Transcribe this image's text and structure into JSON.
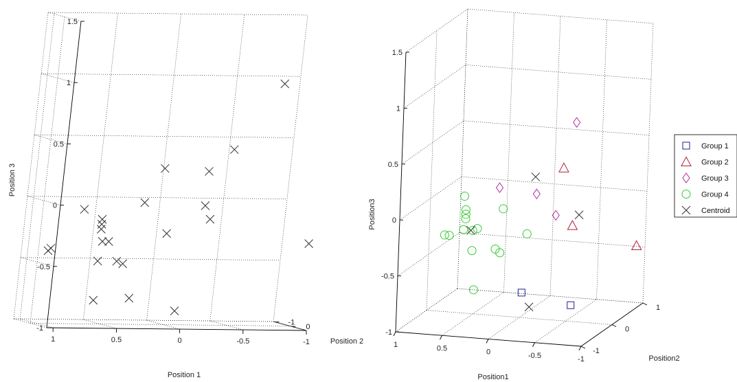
{
  "chart_data": [
    {
      "type": "scatter",
      "projection": "3d",
      "xlabel": "Position 1",
      "ylabel": "Position 2",
      "zlabel": "Position 3",
      "xticks": [
        "1",
        "0.5",
        "0",
        "-0.5",
        "-1"
      ],
      "yticks": [
        "0",
        "-1"
      ],
      "zticks": [
        "1.5",
        "1",
        "0.5",
        "0",
        "-0.5",
        "-1"
      ],
      "zlim": [
        -1,
        1.5
      ],
      "grid": true,
      "series": [
        {
          "marker": "x",
          "color": "#333333",
          "points": [
            [
              1.0,
              0.4,
              -0.4
            ],
            [
              0.98,
              0.4,
              -0.38
            ],
            [
              0.75,
              0.4,
              -0.06
            ],
            [
              0.6,
              0.4,
              -0.14
            ],
            [
              0.6,
              0.4,
              -0.18
            ],
            [
              0.6,
              0.4,
              -0.22
            ],
            [
              0.58,
              0.4,
              -0.32
            ],
            [
              0.53,
              0.4,
              -0.32
            ],
            [
              0.6,
              0.4,
              -0.48
            ],
            [
              0.45,
              0.4,
              -0.48
            ],
            [
              0.4,
              0.4,
              -0.5
            ],
            [
              0.6,
              0.4,
              -0.8
            ],
            [
              0.32,
              0.4,
              -0.78
            ],
            [
              0.28,
              0.4,
              0.0
            ],
            [
              0.08,
              0.4,
              -0.25
            ],
            [
              0.15,
              0.4,
              0.28
            ],
            [
              -0.2,
              0.4,
              0.26
            ],
            [
              -0.2,
              0.4,
              -0.02
            ],
            [
              -0.25,
              0.4,
              -0.13
            ],
            [
              -0.38,
              0.4,
              0.44
            ],
            [
              -0.05,
              0.4,
              -0.88
            ],
            [
              -0.72,
              0.4,
              0.98
            ],
            [
              -1.05,
              0.4,
              -0.32
            ]
          ]
        }
      ]
    },
    {
      "type": "scatter",
      "projection": "3d",
      "xlabel": "Position1",
      "ylabel": "Position2",
      "zlabel": "Position3",
      "xticks": [
        "1",
        "0.5",
        "0",
        "-0.5",
        "-1"
      ],
      "yticks": [
        "-1",
        "0",
        "1"
      ],
      "zticks": [
        "1.5",
        "1",
        "0.5",
        "0",
        "-0.5",
        "-1"
      ],
      "zlim": [
        -1,
        1.5
      ],
      "grid": true,
      "legend_position": "right",
      "series": [
        {
          "name": "Group 1",
          "marker": "square",
          "color": "#1f1f8f",
          "points": [
            [
              0.05,
              0.2,
              -0.82
            ],
            [
              -0.45,
              0.3,
              -0.92
            ]
          ]
        },
        {
          "name": "Group 2",
          "marker": "triangle",
          "color": "#b0203c",
          "points": [
            [
              -0.55,
              -0.4,
              0.45
            ],
            [
              -0.6,
              -0.2,
              -0.1
            ],
            [
              -1.2,
              0.1,
              -0.3
            ]
          ]
        },
        {
          "name": "Group 3",
          "marker": "diamond",
          "color": "#b0309e",
          "points": [
            [
              -0.8,
              -0.8,
              0.95
            ],
            [
              0.1,
              -0.5,
              0.25
            ],
            [
              -0.3,
              -0.5,
              0.22
            ],
            [
              -0.45,
              -0.3,
              0.0
            ]
          ]
        },
        {
          "name": "Group 4",
          "marker": "circle",
          "color": "#33cc33",
          "points": [
            [
              0.7,
              0.2,
              0.0
            ],
            [
              0.68,
              0.2,
              -0.12
            ],
            [
              0.68,
              0.2,
              -0.16
            ],
            [
              0.68,
              0.2,
              -0.2
            ],
            [
              0.7,
              0.2,
              -0.3
            ],
            [
              0.85,
              0.2,
              -0.36
            ],
            [
              0.9,
              0.2,
              -0.36
            ],
            [
              0.6,
              0.2,
              -0.3
            ],
            [
              0.55,
              0.2,
              -0.28
            ],
            [
              0.15,
              -0.2,
              0.0
            ],
            [
              -0.05,
              0.0,
              -0.25
            ],
            [
              0.35,
              0.2,
              -0.45
            ],
            [
              0.3,
              0.2,
              -0.48
            ],
            [
              0.6,
              0.2,
              -0.48
            ],
            [
              0.6,
              0.3,
              -0.85
            ]
          ]
        },
        {
          "name": "Centroid",
          "marker": "x",
          "color": "#333333",
          "points": [
            [
              0.62,
              0.2,
              -0.3
            ],
            [
              -0.1,
              0.0,
              -0.9
            ],
            [
              -0.25,
              -0.4,
              0.35
            ],
            [
              -0.7,
              -0.3,
              0.02
            ]
          ]
        }
      ]
    }
  ]
}
